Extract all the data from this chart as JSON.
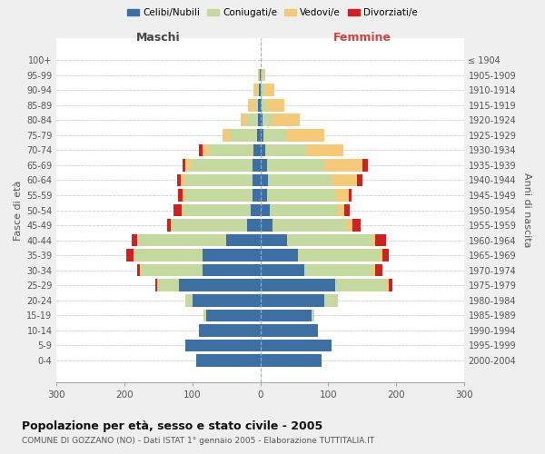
{
  "age_groups": [
    "0-4",
    "5-9",
    "10-14",
    "15-19",
    "20-24",
    "25-29",
    "30-34",
    "35-39",
    "40-44",
    "45-49",
    "50-54",
    "55-59",
    "60-64",
    "65-69",
    "70-74",
    "75-79",
    "80-84",
    "85-89",
    "90-94",
    "95-99",
    "100+"
  ],
  "birth_years": [
    "2000-2004",
    "1995-1999",
    "1990-1994",
    "1985-1989",
    "1980-1984",
    "1975-1979",
    "1970-1974",
    "1965-1969",
    "1960-1964",
    "1955-1959",
    "1950-1954",
    "1945-1949",
    "1940-1944",
    "1935-1939",
    "1930-1934",
    "1925-1929",
    "1920-1924",
    "1915-1919",
    "1910-1914",
    "1905-1909",
    "≤ 1904"
  ],
  "maschi": {
    "celibi": [
      95,
      110,
      90,
      80,
      100,
      120,
      85,
      85,
      50,
      20,
      14,
      12,
      12,
      12,
      10,
      5,
      4,
      3,
      2,
      1,
      0
    ],
    "coniugati": [
      0,
      0,
      0,
      3,
      10,
      30,
      90,
      100,
      130,
      110,
      100,
      100,
      100,
      90,
      65,
      40,
      15,
      5,
      3,
      1,
      0
    ],
    "vedovi": [
      0,
      0,
      0,
      0,
      0,
      2,
      2,
      2,
      2,
      2,
      2,
      3,
      5,
      8,
      10,
      10,
      10,
      10,
      5,
      2,
      0
    ],
    "divorziati": [
      0,
      0,
      0,
      0,
      0,
      3,
      5,
      10,
      8,
      5,
      12,
      6,
      5,
      5,
      5,
      0,
      0,
      0,
      0,
      0,
      0
    ]
  },
  "femmine": {
    "nubili": [
      90,
      105,
      85,
      75,
      95,
      110,
      65,
      55,
      40,
      18,
      14,
      10,
      12,
      10,
      8,
      5,
      3,
      2,
      1,
      1,
      0
    ],
    "coniugate": [
      0,
      0,
      0,
      5,
      20,
      75,
      100,
      120,
      125,
      110,
      100,
      100,
      95,
      85,
      60,
      35,
      15,
      8,
      5,
      2,
      0
    ],
    "vedove": [
      0,
      0,
      0,
      0,
      0,
      5,
      5,
      5,
      5,
      8,
      10,
      20,
      35,
      55,
      55,
      55,
      40,
      25,
      15,
      4,
      0
    ],
    "divorziate": [
      0,
      0,
      0,
      0,
      0,
      5,
      10,
      10,
      15,
      12,
      8,
      5,
      8,
      8,
      0,
      0,
      0,
      0,
      0,
      0,
      0
    ]
  },
  "colors": {
    "celibi_nubili": "#3e6fa3",
    "coniugati_e": "#c5d8a0",
    "vedovi_e": "#f5c97a",
    "divorziati_e": "#cc2222"
  },
  "title": "Popolazione per età, sesso e stato civile - 2005",
  "subtitle": "COMUNE DI GOZZANO (NO) - Dati ISTAT 1° gennaio 2005 - Elaborazione TUTTITALIA.IT",
  "xlabel_left": "Maschi",
  "xlabel_right": "Femmine",
  "ylabel_left": "Fasce di età",
  "ylabel_right": "Anni di nascita",
  "xlim": 300,
  "legend_labels": [
    "Celibi/Nubili",
    "Coniugati/e",
    "Vedovi/e",
    "Divorziati/e"
  ],
  "bg_color": "#efefef",
  "plot_bg_color": "#ffffff"
}
